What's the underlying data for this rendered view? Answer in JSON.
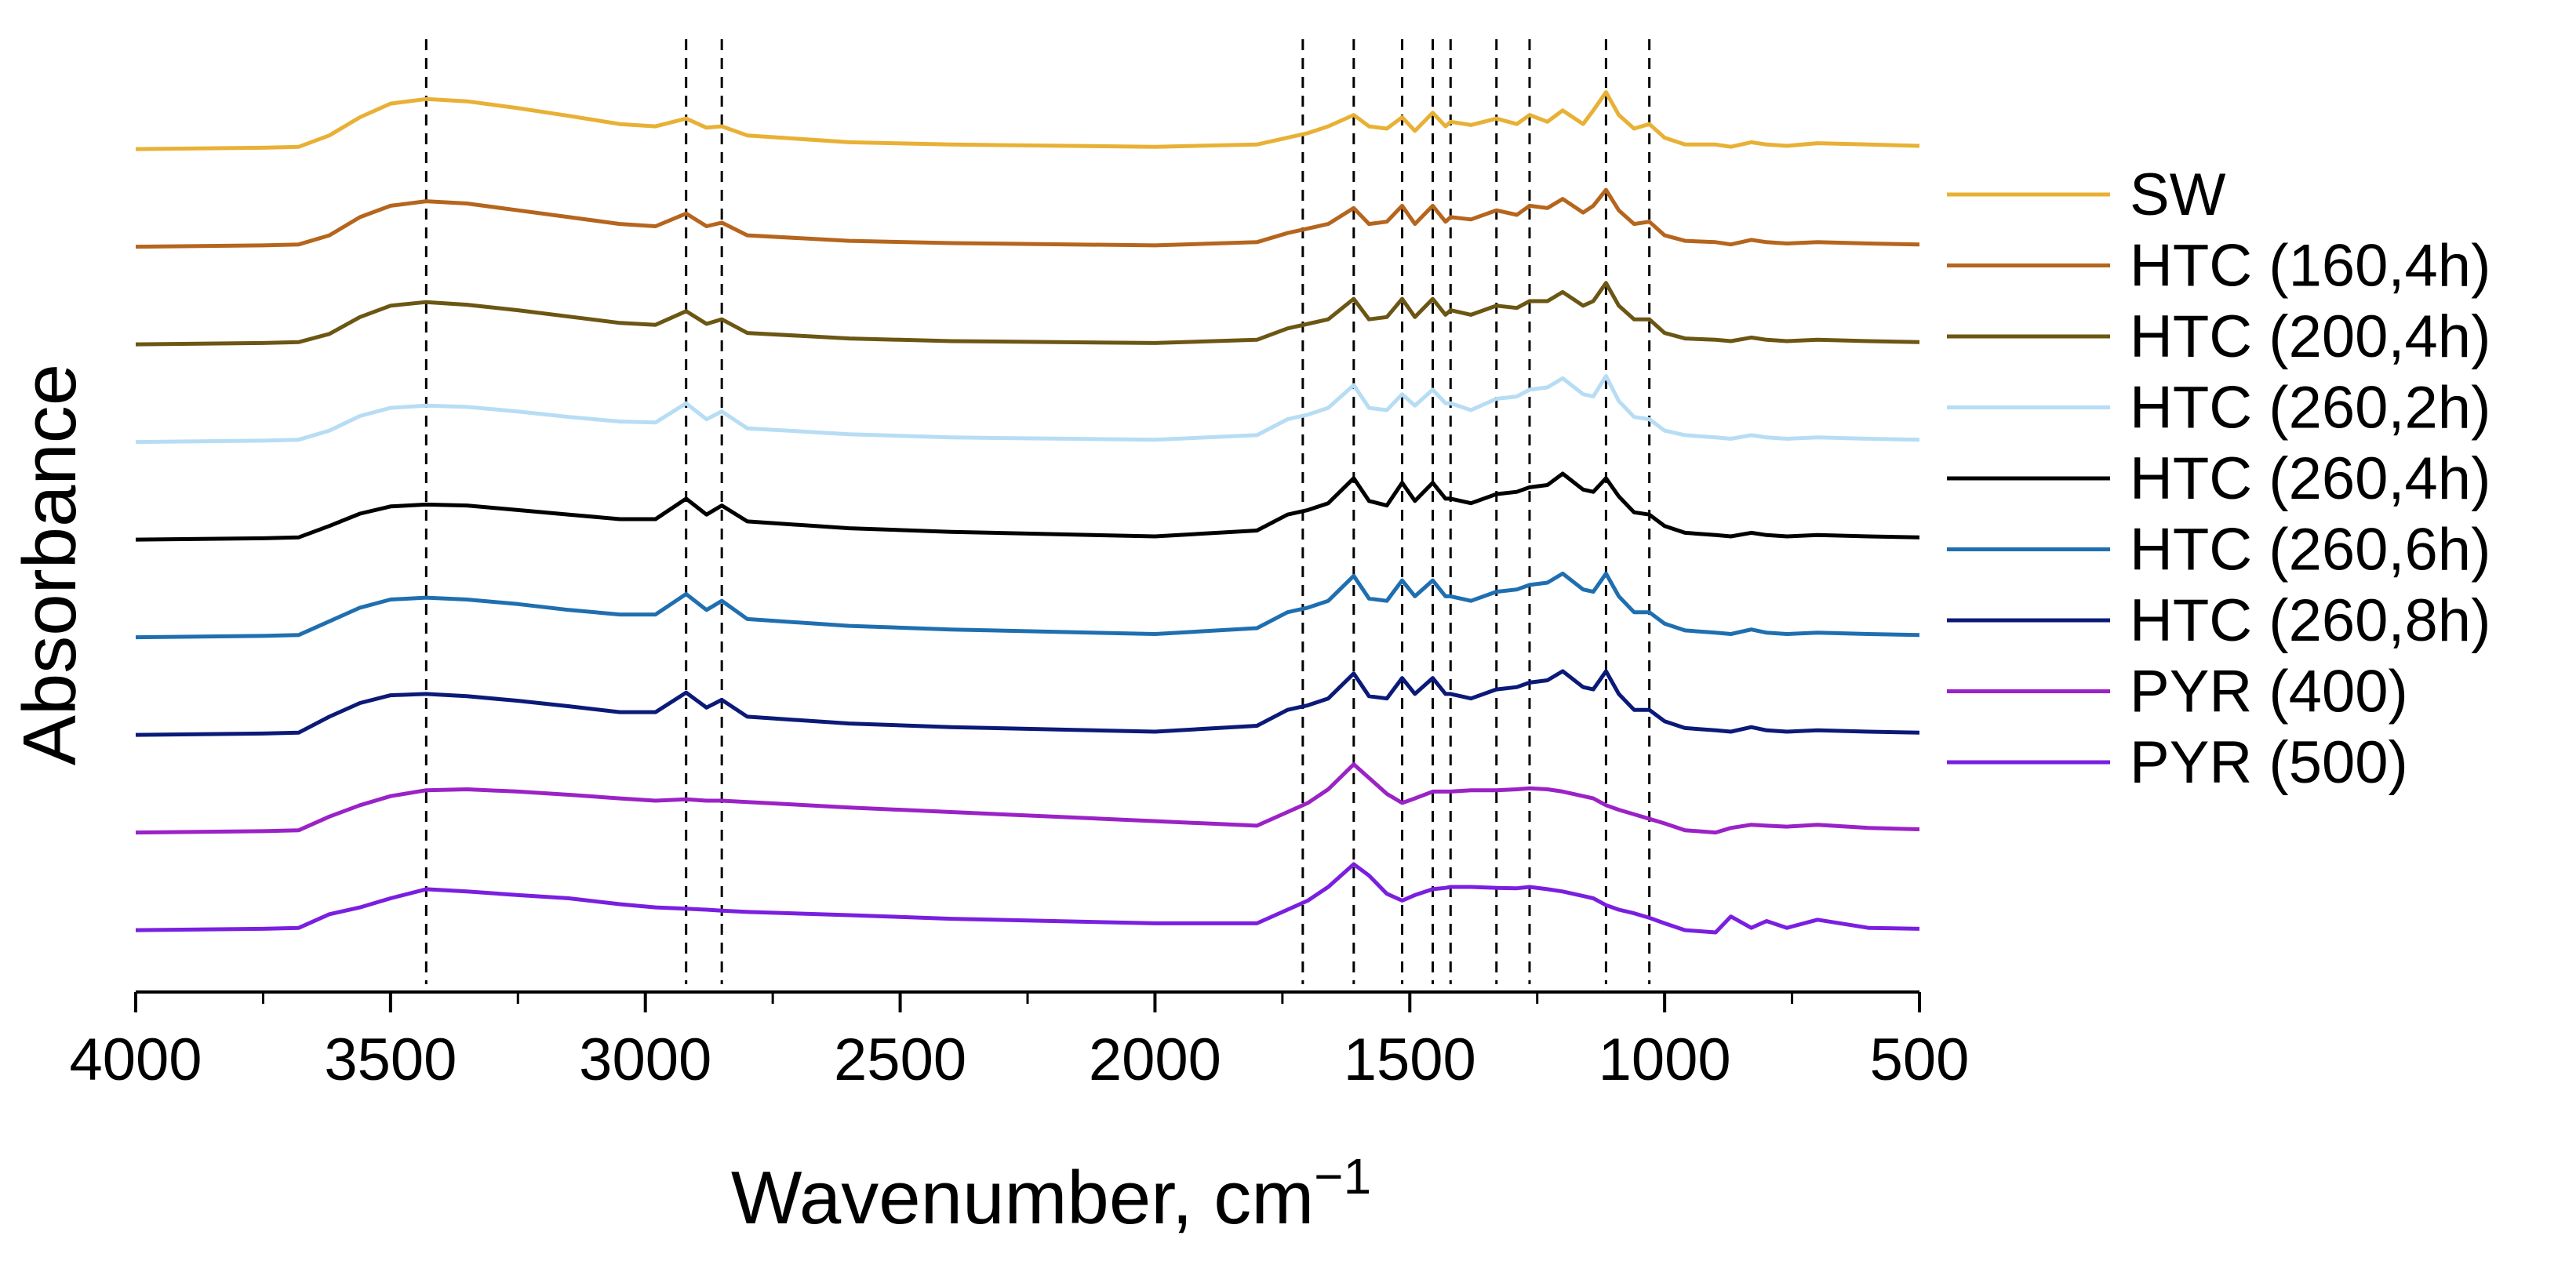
{
  "chart_data": {
    "type": "line",
    "title": "",
    "xlabel": "Wavenumber, cm",
    "xlabel_superscript": "−1",
    "ylabel": "Absorbance",
    "xlim": [
      4000,
      500
    ],
    "x_reversed": true,
    "x_ticks": [
      4000,
      3500,
      3000,
      2500,
      2000,
      1500,
      1000,
      500
    ],
    "x_tick_labels": [
      "4000",
      "3500",
      "3000",
      "2500",
      "2000",
      "1500",
      "1000",
      "500"
    ],
    "y_ticks_shown": false,
    "grid": false,
    "legend_position": "right",
    "reference_lines_cm1": [
      3430,
      2920,
      2850,
      1710,
      1610,
      1515,
      1455,
      1420,
      1330,
      1265,
      1115,
      1030
    ],
    "x": [
      4000,
      3750,
      3680,
      3620,
      3560,
      3500,
      3430,
      3350,
      3250,
      3150,
      3050,
      2980,
      2920,
      2880,
      2850,
      2800,
      2600,
      2400,
      2000,
      1800,
      1740,
      1700,
      1660,
      1610,
      1580,
      1545,
      1515,
      1490,
      1455,
      1430,
      1420,
      1380,
      1330,
      1290,
      1265,
      1230,
      1200,
      1160,
      1140,
      1115,
      1090,
      1060,
      1030,
      1000,
      960,
      900,
      870,
      830,
      800,
      760,
      700,
      600,
      500
    ],
    "series": [
      {
        "name": "SW",
        "color": "#E8B135",
        "offset": 8.0,
        "values": [
          0.05,
          0.08,
          0.1,
          0.35,
          0.75,
          1.05,
          1.15,
          1.1,
          0.95,
          0.78,
          0.6,
          0.55,
          0.72,
          0.52,
          0.55,
          0.35,
          0.2,
          0.15,
          0.1,
          0.15,
          0.3,
          0.4,
          0.55,
          0.8,
          0.55,
          0.5,
          0.75,
          0.45,
          0.85,
          0.55,
          0.65,
          0.58,
          0.72,
          0.6,
          0.8,
          0.65,
          0.9,
          0.6,
          0.9,
          1.3,
          0.8,
          0.5,
          0.6,
          0.3,
          0.15,
          0.15,
          0.1,
          0.2,
          0.15,
          0.12,
          0.18,
          0.15,
          0.12
        ]
      },
      {
        "name": "HTC (160,4h)",
        "color": "#B5651D",
        "offset": 7.0,
        "values": [
          0.05,
          0.08,
          0.1,
          0.3,
          0.7,
          0.95,
          1.05,
          1.0,
          0.85,
          0.7,
          0.55,
          0.5,
          0.78,
          0.5,
          0.58,
          0.3,
          0.18,
          0.13,
          0.08,
          0.15,
          0.35,
          0.45,
          0.55,
          0.9,
          0.55,
          0.6,
          0.95,
          0.55,
          0.95,
          0.6,
          0.7,
          0.65,
          0.85,
          0.75,
          0.95,
          0.9,
          1.1,
          0.8,
          0.95,
          1.3,
          0.85,
          0.55,
          0.6,
          0.3,
          0.18,
          0.15,
          0.1,
          0.2,
          0.15,
          0.12,
          0.15,
          0.12,
          0.1
        ]
      },
      {
        "name": "HTC (200,4h)",
        "color": "#6B5613",
        "offset": 6.0,
        "values": [
          0.05,
          0.08,
          0.1,
          0.28,
          0.65,
          0.9,
          0.98,
          0.92,
          0.8,
          0.66,
          0.52,
          0.48,
          0.78,
          0.5,
          0.6,
          0.3,
          0.18,
          0.12,
          0.08,
          0.15,
          0.4,
          0.5,
          0.6,
          1.05,
          0.6,
          0.65,
          1.05,
          0.65,
          1.05,
          0.7,
          0.8,
          0.7,
          0.9,
          0.85,
          1.0,
          1.0,
          1.2,
          0.9,
          1.0,
          1.4,
          0.9,
          0.6,
          0.6,
          0.3,
          0.18,
          0.15,
          0.12,
          0.2,
          0.15,
          0.12,
          0.15,
          0.12,
          0.1
        ]
      },
      {
        "name": "HTC (260,2h)",
        "color": "#B7DDF5",
        "offset": 5.0,
        "values": [
          0.05,
          0.08,
          0.1,
          0.3,
          0.62,
          0.8,
          0.85,
          0.82,
          0.72,
          0.6,
          0.5,
          0.48,
          0.9,
          0.55,
          0.72,
          0.35,
          0.22,
          0.15,
          0.1,
          0.2,
          0.55,
          0.65,
          0.8,
          1.3,
          0.8,
          0.75,
          1.1,
          0.85,
          1.2,
          0.9,
          0.9,
          0.75,
          1.0,
          1.05,
          1.2,
          1.25,
          1.45,
          1.1,
          1.05,
          1.5,
          0.95,
          0.6,
          0.55,
          0.3,
          0.2,
          0.15,
          0.12,
          0.2,
          0.15,
          0.12,
          0.15,
          0.12,
          0.1
        ]
      },
      {
        "name": "HTC (260,4h)",
        "color": "#000000",
        "offset": 4.0,
        "values": [
          0.05,
          0.08,
          0.1,
          0.35,
          0.62,
          0.78,
          0.82,
          0.8,
          0.7,
          0.6,
          0.5,
          0.5,
          0.95,
          0.6,
          0.8,
          0.45,
          0.3,
          0.22,
          0.12,
          0.25,
          0.6,
          0.7,
          0.85,
          1.4,
          0.9,
          0.8,
          1.3,
          0.9,
          1.3,
          0.95,
          0.95,
          0.85,
          1.05,
          1.1,
          1.2,
          1.25,
          1.5,
          1.15,
          1.1,
          1.4,
          1.0,
          0.65,
          0.6,
          0.35,
          0.2,
          0.15,
          0.12,
          0.2,
          0.15,
          0.12,
          0.15,
          0.12,
          0.1
        ]
      },
      {
        "name": "HTC (260,6h)",
        "color": "#1F6FB0",
        "offset": 3.0,
        "values": [
          0.05,
          0.08,
          0.1,
          0.4,
          0.7,
          0.88,
          0.92,
          0.88,
          0.78,
          0.65,
          0.55,
          0.55,
          1.0,
          0.65,
          0.85,
          0.45,
          0.3,
          0.22,
          0.12,
          0.25,
          0.6,
          0.7,
          0.85,
          1.4,
          0.9,
          0.85,
          1.3,
          0.95,
          1.3,
          0.95,
          0.95,
          0.85,
          1.05,
          1.1,
          1.2,
          1.25,
          1.45,
          1.1,
          1.05,
          1.45,
          0.95,
          0.6,
          0.6,
          0.35,
          0.2,
          0.15,
          0.12,
          0.22,
          0.15,
          0.12,
          0.15,
          0.12,
          0.1
        ]
      },
      {
        "name": "HTC (260,8h)",
        "color": "#0B1A78",
        "offset": 2.0,
        "values": [
          0.05,
          0.08,
          0.1,
          0.45,
          0.75,
          0.92,
          0.95,
          0.9,
          0.8,
          0.68,
          0.55,
          0.55,
          0.98,
          0.65,
          0.82,
          0.45,
          0.3,
          0.22,
          0.12,
          0.25,
          0.6,
          0.7,
          0.85,
          1.4,
          0.9,
          0.85,
          1.3,
          0.95,
          1.3,
          0.95,
          0.95,
          0.85,
          1.05,
          1.1,
          1.2,
          1.25,
          1.45,
          1.1,
          1.05,
          1.45,
          0.95,
          0.6,
          0.6,
          0.35,
          0.2,
          0.15,
          0.12,
          0.22,
          0.15,
          0.12,
          0.15,
          0.12,
          0.1
        ]
      },
      {
        "name": "PYR (400)",
        "color": "#9B22C6",
        "offset": 1.0,
        "values": [
          0.05,
          0.08,
          0.1,
          0.4,
          0.65,
          0.85,
          0.98,
          1.0,
          0.95,
          0.88,
          0.8,
          0.75,
          0.78,
          0.75,
          0.75,
          0.72,
          0.6,
          0.5,
          0.3,
          0.2,
          0.5,
          0.7,
          1.0,
          1.55,
          1.25,
          0.9,
          0.7,
          0.8,
          0.95,
          0.95,
          0.95,
          0.98,
          0.98,
          1.0,
          1.02,
          1.0,
          0.95,
          0.85,
          0.8,
          0.65,
          0.55,
          0.45,
          0.35,
          0.25,
          0.1,
          0.05,
          0.15,
          0.22,
          0.2,
          0.18,
          0.22,
          0.15,
          0.12
        ]
      },
      {
        "name": "PYR (500)",
        "color": "#7A1FE0",
        "offset": 0.0,
        "values": [
          0.05,
          0.08,
          0.1,
          0.4,
          0.55,
          0.75,
          0.95,
          0.9,
          0.82,
          0.75,
          0.62,
          0.55,
          0.52,
          0.5,
          0.48,
          0.45,
          0.38,
          0.3,
          0.2,
          0.2,
          0.5,
          0.7,
          1.0,
          1.5,
          1.25,
          0.85,
          0.7,
          0.82,
          0.95,
          0.98,
          1.0,
          1.0,
          0.98,
          0.97,
          1.0,
          0.95,
          0.9,
          0.8,
          0.75,
          0.6,
          0.5,
          0.42,
          0.32,
          0.2,
          0.05,
          0.0,
          0.35,
          0.1,
          0.25,
          0.1,
          0.28,
          0.1,
          0.08
        ]
      }
    ]
  }
}
